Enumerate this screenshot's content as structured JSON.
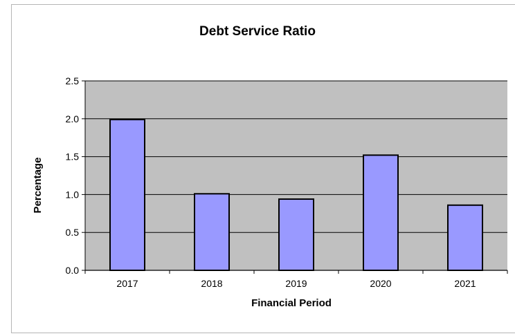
{
  "chart_data": {
    "type": "bar",
    "title": "Debt Service Ratio",
    "xlabel": "Financial Period",
    "ylabel": "Percentage",
    "categories": [
      "2017",
      "2018",
      "2019",
      "2020",
      "2021"
    ],
    "values": [
      1.99,
      1.01,
      0.94,
      1.52,
      0.86
    ],
    "ylim": [
      0,
      2.5
    ],
    "yticks": [
      "0.0",
      "0.5",
      "1.0",
      "1.5",
      "2.0",
      "2.5"
    ],
    "grid": true,
    "legend": "none",
    "colors": {
      "bar_fill": "#9999ff",
      "bar_stroke": "#000000",
      "plot_background": "#c0c0c0",
      "gridline": "#000000"
    }
  }
}
